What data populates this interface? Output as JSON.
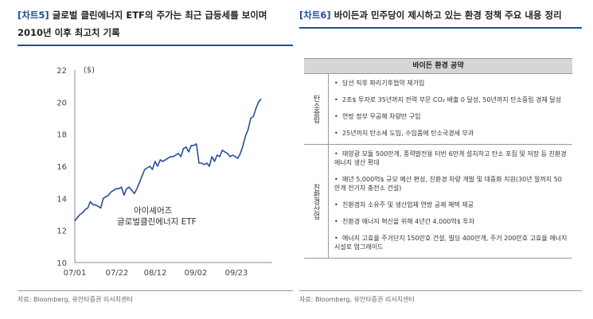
{
  "left": {
    "tag": "[차트5]",
    "title": "글로벌 클린에너지 ETF의 주가는 최근 급등세를 보이며 2010년 이후 최고치 기록",
    "source": "자료: Bloomberg, 유안타증권 리서치센터"
  },
  "right": {
    "tag": "[차트6]",
    "title": "바이든과 민주당이 제시하고 있는 환경 정책 주요 내용 정리",
    "source": "자료: Bloomberg, 유안타증권 리서치센터",
    "table_header": "바이든 환경 공약",
    "groups": [
      {
        "label": "탄소중립",
        "items": [
          "당선 직후 파리기후협약 재가입",
          "2조$ 투자로 35년까지 전력 부문 CO₂ 배출 0 달성, 50년까지 탄소중립 경제 달성",
          "연방 정부 무공해 차량만 구입",
          "25년까지 탄소세 도입, 수입품에 탄소국경세 부과"
        ]
      },
      {
        "label": "친환경산업",
        "items": [
          "태양광 모듈 500만개, 풍력발전용 터빈 6만개 설치하고 탄소 포집 및 저장 등 친환경 에너지 생산 확대",
          "매년 5,000억$ 규모 예산 편성, 친환경 차량 개발 및 대중화 지원(30년 말까지 50만개 전기차 충전소 건설)",
          "친환경차 소유주 및 생산업체 연방 공제 혜택 제공",
          "친환경 에너지 혁신을 위해 4년간 4,000억$ 투자",
          "에너지 고효율 주거단지 150만호 건설, 빌딩 400만개, 주거 200만호 고효율 에너지 시설로 업그레이드"
        ]
      }
    ]
  },
  "chart_data": {
    "type": "line",
    "title": "",
    "ylabel": "($)",
    "xlabel": "",
    "ylim": [
      10,
      22
    ],
    "yticks": [
      10,
      12,
      14,
      16,
      18,
      20,
      22
    ],
    "xticks": [
      "07/01",
      "07/22",
      "08/12",
      "09/02",
      "09/23"
    ],
    "annotation": "아이셰어즈 글로벌클린에너지 ETF",
    "series": [
      {
        "name": "아이셰어즈 글로벌클린에너지 ETF",
        "color": "#2b4c9c",
        "values": [
          12.6,
          12.8,
          13.0,
          13.1,
          13.3,
          13.4,
          13.8,
          13.6,
          13.6,
          13.5,
          13.4,
          14.0,
          14.1,
          14.2,
          14.4,
          14.5,
          14.6,
          14.6,
          14.7,
          14.2,
          14.6,
          14.7,
          14.5,
          14.3,
          14.6,
          15.0,
          15.4,
          15.8,
          15.9,
          16.0,
          15.8,
          16.3,
          16.0,
          16.4,
          16.3,
          16.4,
          16.5,
          16.6,
          16.6,
          16.7,
          16.8,
          16.6,
          17.1,
          17.2,
          16.9,
          17.3,
          17.3,
          17.4,
          16.2,
          16.2,
          16.1,
          16.2,
          16.0,
          16.6,
          16.3,
          16.7,
          16.6,
          17.0,
          16.9,
          16.8,
          16.6,
          16.7,
          16.6,
          16.5,
          16.8,
          17.3,
          17.9,
          18.3,
          19.0,
          19.1,
          19.6,
          20.0,
          20.2
        ]
      }
    ]
  }
}
